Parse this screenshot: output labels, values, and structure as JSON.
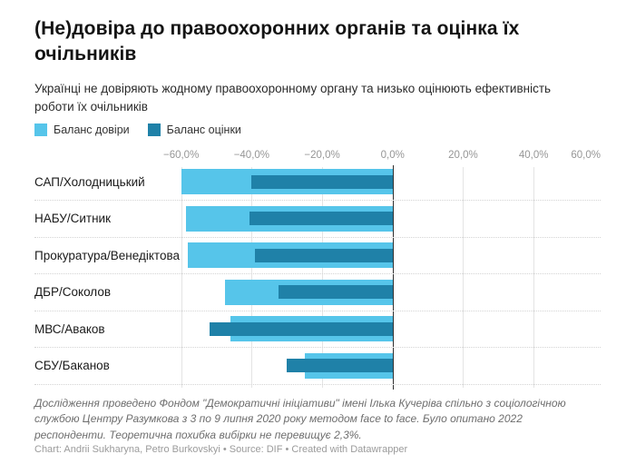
{
  "header": {
    "title": "(Не)довіра до правоохоронних органів та оцінка їх очільників",
    "subtitle": "Українці не довіряють жодному правоохоронному органу та низько оцінюють ефективність роботи їх очільників"
  },
  "legend": {
    "items": [
      {
        "label": "Баланс довіри",
        "color": "#56c5ea"
      },
      {
        "label": "Баланс оцінки",
        "color": "#1f81a8"
      }
    ]
  },
  "chart_data": {
    "type": "bar",
    "orientation": "horizontal",
    "unit": "%",
    "grid": true,
    "legend_position": "top",
    "categories": [
      "САП/Холодницький",
      "НАБУ/Ситник",
      "Прокуратура/Венедіктова",
      "ДБР/Соколов",
      "МВС/Аваков",
      "СБУ/Баканов"
    ],
    "series": [
      {
        "name": "Баланс довіри",
        "color": "#56c5ea",
        "values": [
          -60,
          -58.5,
          -58,
          -47.5,
          -46,
          -25
        ]
      },
      {
        "name": "Баланс оцінки",
        "color": "#1f81a8",
        "values": [
          -40,
          -40.5,
          -39,
          -32.5,
          -52,
          -30
        ]
      }
    ],
    "x_axis": {
      "min": -63,
      "max": 59,
      "ticks": [
        -60,
        -40,
        -20,
        0,
        20,
        40,
        60
      ],
      "tick_labels": [
        "−60,0%",
        "−40,0%",
        "−20,0%",
        "0,0%",
        "20,0%",
        "40,0%",
        "60,0%"
      ]
    }
  },
  "footer": {
    "notes": "Дослідження проведено Фондом \"Демократичні ініціативи\" імені Ілька Кучеріва спільно з соціологічною службою Центру Разумкова з 3 по 9 липня 2020 року методом face to face. Було опитано 2022 респонденти. Теоретична похибка вибірки не перевищує 2,3%.",
    "byline": "Chart: Andrii Sukharyna, Petro Burkovskyi • Source: DIF • Created with Datawrapper"
  }
}
